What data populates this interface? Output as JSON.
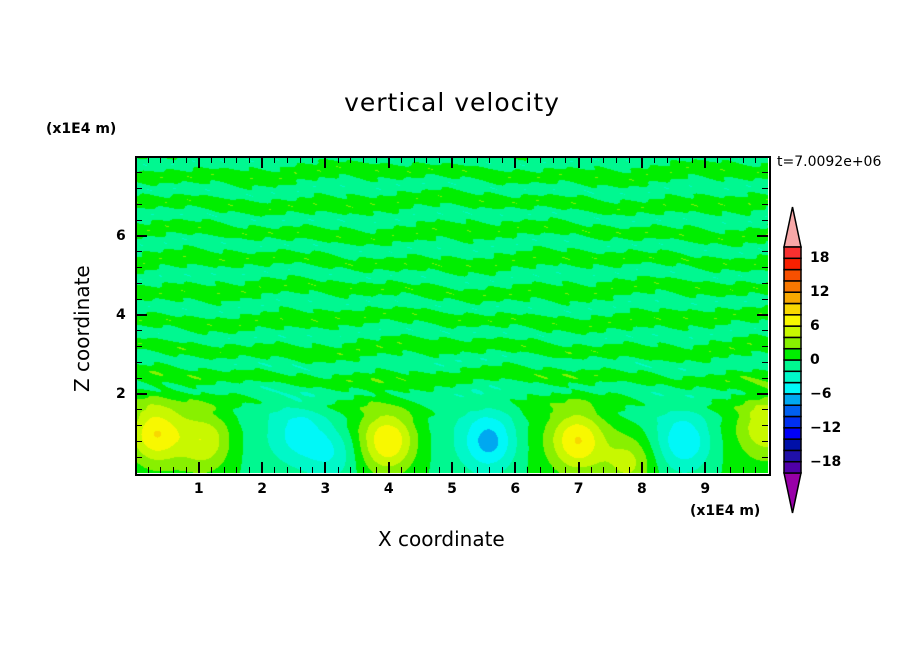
{
  "chart_data": {
    "type": "heatmap",
    "subtype": "filled-contour",
    "title": "vertical velocity",
    "xlabel": "X coordinate",
    "ylabel": "Z coordinate",
    "x_unit": "(x1E4 m)",
    "y_unit": "(x1E4 m)",
    "annotation": "t=7.0092e+06",
    "xlim": [
      0,
      10
    ],
    "ylim": [
      0,
      8
    ],
    "xticks": [
      1,
      2,
      3,
      4,
      5,
      6,
      7,
      8,
      9
    ],
    "yticks": [
      2,
      4,
      6
    ],
    "colorbar": {
      "levels": [
        -20,
        -18,
        -16,
        -14,
        -12,
        -10,
        -8,
        -6,
        -4,
        -2,
        0,
        2,
        4,
        6,
        8,
        10,
        12,
        14,
        16,
        18,
        20
      ],
      "tick_labels": [
        "18",
        "12",
        "6",
        "0",
        "-6",
        "-12",
        "-18"
      ],
      "tick_values": [
        18,
        12,
        6,
        0,
        -6,
        -12,
        -18
      ],
      "colors": [
        "#5000a8",
        "#2010a8",
        "#0010a8",
        "#0000f8",
        "#0030f0",
        "#0060f0",
        "#00a8f0",
        "#00f8f8",
        "#00f8c8",
        "#00f890",
        "#00ee00",
        "#88f000",
        "#c8f800",
        "#f8f800",
        "#f8d800",
        "#f8a800",
        "#f87800",
        "#f85000",
        "#f82000",
        "#f83030"
      ],
      "over_color": "#f8a8a8",
      "under_color": "#9800a8"
    },
    "cells": [
      {
        "x": 0.3,
        "z": 1.0,
        "peak": 7
      },
      {
        "x": 1.1,
        "z": 0.8,
        "peak": 5
      },
      {
        "x": 2.6,
        "z": 1.0,
        "peak": -4
      },
      {
        "x": 3.1,
        "z": 0.5,
        "peak": -4
      },
      {
        "x": 4.0,
        "z": 0.8,
        "peak": 7
      },
      {
        "x": 5.6,
        "z": 0.8,
        "peak": -6
      },
      {
        "x": 7.0,
        "z": 0.8,
        "peak": 7
      },
      {
        "x": 7.8,
        "z": 0.3,
        "peak": 5
      },
      {
        "x": 8.7,
        "z": 0.8,
        "peak": -5
      },
      {
        "x": 10.0,
        "z": 1.2,
        "peak": 5
      }
    ],
    "upper_layer": "alternating 0 to 2 and -2 to 0 horizontal streaks"
  }
}
